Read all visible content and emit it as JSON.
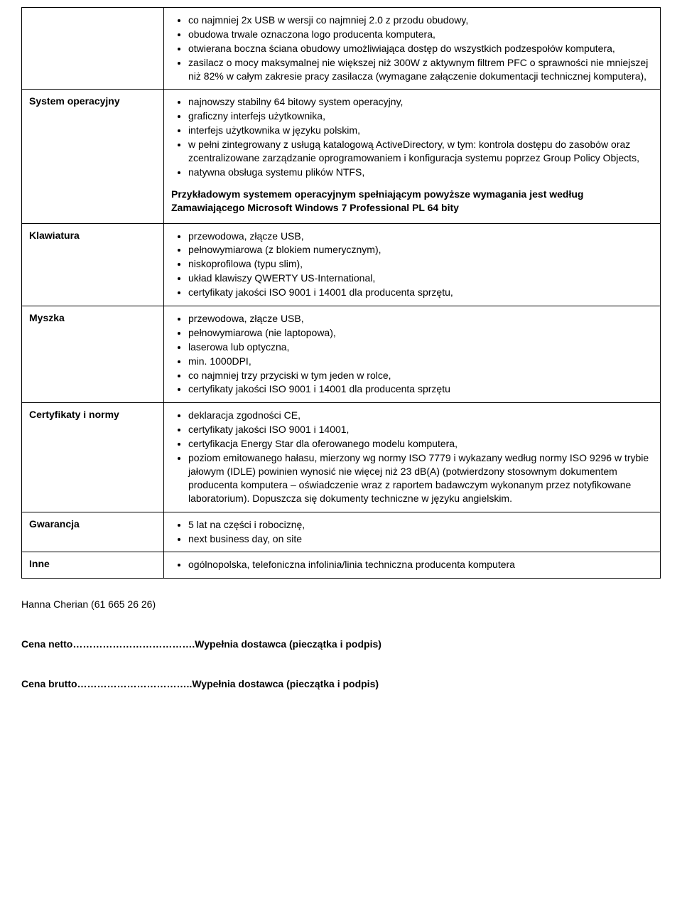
{
  "rows": [
    {
      "label": "",
      "items": [
        "co najmniej 2x USB w wersji co najmniej 2.0 z przodu obudowy,",
        "obudowa trwale oznaczona logo producenta komputera,",
        "otwierana boczna ściana obudowy umożliwiająca dostęp do wszystkich podzespołów komputera,",
        "zasilacz o mocy maksymalnej nie większej niż 300W z aktywnym filtrem PFC o sprawności nie mniejszej niż 82% w całym zakresie pracy zasilacza (wymagane załączenie dokumentacji technicznej komputera),"
      ]
    },
    {
      "label": "System operacyjny",
      "items": [
        "najnowszy stabilny 64 bitowy system operacyjny,",
        "graficzny interfejs użytkownika,",
        "interfejs użytkownika w języku polskim,",
        "w pełni zintegrowany z usługą katalogową ActiveDirectory, w tym: kontrola dostępu do zasobów oraz zcentralizowane zarządzanie oprogramowaniem i konfiguracja systemu poprzez Group Policy Objects,",
        "natywna obsługa systemu plików NTFS,"
      ],
      "extra_paragraph": "Przykładowym systemem operacyjnym spełniającym powyższe wymagania jest według Zamawiającego Microsoft Windows 7 Professional PL 64 bity"
    },
    {
      "label": "Klawiatura",
      "items": [
        "przewodowa, złącze USB,",
        "pełnowymiarowa (z blokiem numerycznym),",
        "niskoprofilowa (typu slim),",
        "układ klawiszy QWERTY US-International,",
        "certyfikaty jakości ISO 9001 i 14001 dla producenta sprzętu,"
      ]
    },
    {
      "label": "Myszka",
      "items": [
        "przewodowa, złącze USB,",
        "pełnowymiarowa (nie laptopowa),",
        "laserowa lub optyczna,",
        "min. 1000DPI,",
        "co najmniej trzy przyciski w tym jeden w rolce,",
        "certyfikaty jakości ISO 9001 i 14001 dla producenta sprzętu"
      ]
    },
    {
      "label": "Certyfikaty i normy",
      "items": [
        "deklaracja zgodności CE,",
        "certyfikaty jakości ISO 9001 i 14001,",
        "certyfikacja Energy Star dla oferowanego modelu komputera,",
        "poziom emitowanego hałasu, mierzony wg normy ISO 7779 i wykazany według normy ISO 9296 w trybie jałowym (IDLE) powinien wynosić nie więcej niż 23 dB(A) (potwierdzony stosownym dokumentem producenta komputera – oświadczenie wraz z raportem badawczym wykonanym przez notyfikowane laboratorium). Dopuszcza się dokumenty techniczne w języku angielskim."
      ]
    },
    {
      "label": "Gwarancja",
      "items": [
        "5 lat na części i robociznę,",
        "next business day, on site"
      ]
    },
    {
      "label": "Inne",
      "items": [
        "ogólnopolska, telefoniczna infolinia/linia techniczna producenta komputera"
      ]
    }
  ],
  "contact": "Hanna Cherian (61 665 26 26)",
  "price_net": "Cena netto……………………………….Wypełnia dostawca (pieczątka i podpis)",
  "price_gross": "Cena brutto……………………………..Wypełnia dostawca (pieczątka i podpis)"
}
